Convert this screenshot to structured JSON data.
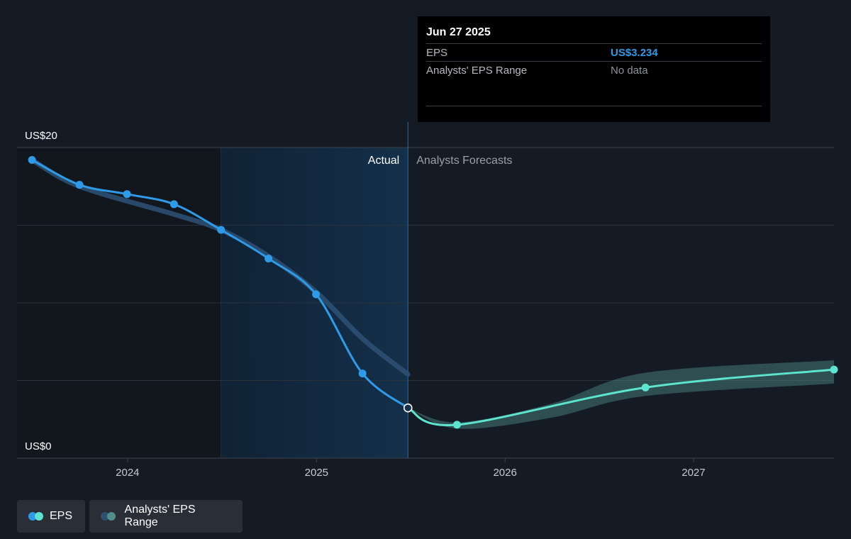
{
  "colors": {
    "background": "#151b24",
    "eps_actual": "#2e9be8",
    "eps_forecast": "#5de4cf",
    "range_band": "#4f8f8a",
    "past_range_band": "#2c4f72",
    "actual_region": "#143049"
  },
  "chart_data": {
    "type": "line",
    "y_axis": {
      "ylim": [
        0,
        20
      ],
      "ticks": [
        0,
        5,
        10,
        15,
        20
      ],
      "top_label": "US$20",
      "bottom_label": "US$0"
    },
    "x_axis": {
      "xlim": [
        "2023-06-01",
        "2027-09-30"
      ],
      "tick_labels": [
        "2024",
        "2025",
        "2026",
        "2027"
      ],
      "tick_dates": [
        "2024-01-01",
        "2025-01-01",
        "2026-01-01",
        "2027-01-01"
      ]
    },
    "actual_label": "Actual",
    "forecast_label": "Analysts Forecasts",
    "divider_date": "2025-06-27",
    "series": [
      {
        "name": "EPS",
        "kind": "actual",
        "points": [
          [
            "2023-06-30",
            19.2
          ],
          [
            "2023-09-30",
            17.6
          ],
          [
            "2023-12-31",
            17.0
          ],
          [
            "2024-03-31",
            16.35
          ],
          [
            "2024-06-30",
            14.7
          ],
          [
            "2024-09-30",
            12.85
          ],
          [
            "2024-12-31",
            10.55
          ],
          [
            "2025-03-31",
            5.45
          ],
          [
            "2025-06-27",
            3.234
          ]
        ]
      },
      {
        "name": "EPS",
        "kind": "forecast",
        "points": [
          [
            "2025-06-27",
            3.234
          ],
          [
            "2025-09-30",
            2.15
          ],
          [
            "2026-09-30",
            4.55
          ],
          [
            "2027-09-30",
            5.7
          ]
        ]
      },
      {
        "name": "Analysts' EPS Range",
        "kind": "past_range",
        "points": [
          [
            "2023-06-30",
            19.2
          ],
          [
            "2023-09-30",
            17.5
          ],
          [
            "2024-03-31",
            15.7
          ],
          [
            "2024-06-30",
            14.7
          ],
          [
            "2024-09-30",
            13.0
          ],
          [
            "2024-12-31",
            10.7
          ],
          [
            "2025-03-31",
            7.7
          ],
          [
            "2025-06-27",
            5.4
          ]
        ]
      },
      {
        "name": "Analysts' EPS Range",
        "kind": "forecast_range",
        "high": [
          [
            "2025-06-27",
            3.234
          ],
          [
            "2025-09-30",
            2.3
          ],
          [
            "2026-03-31",
            3.5
          ],
          [
            "2026-09-30",
            5.5
          ],
          [
            "2027-09-30",
            6.3
          ]
        ],
        "low": [
          [
            "2025-06-27",
            3.234
          ],
          [
            "2025-09-30",
            1.9
          ],
          [
            "2026-03-31",
            2.6
          ],
          [
            "2026-09-30",
            4.0
          ],
          [
            "2027-09-30",
            4.8
          ]
        ]
      }
    ]
  },
  "tooltip": {
    "date": "Jun 27 2025",
    "eps_label": "EPS",
    "eps_value": "US$3.234",
    "range_label": "Analysts' EPS Range",
    "range_value": "No data"
  },
  "legend": {
    "eps_label": "EPS",
    "range_label": "Analysts' EPS Range"
  }
}
